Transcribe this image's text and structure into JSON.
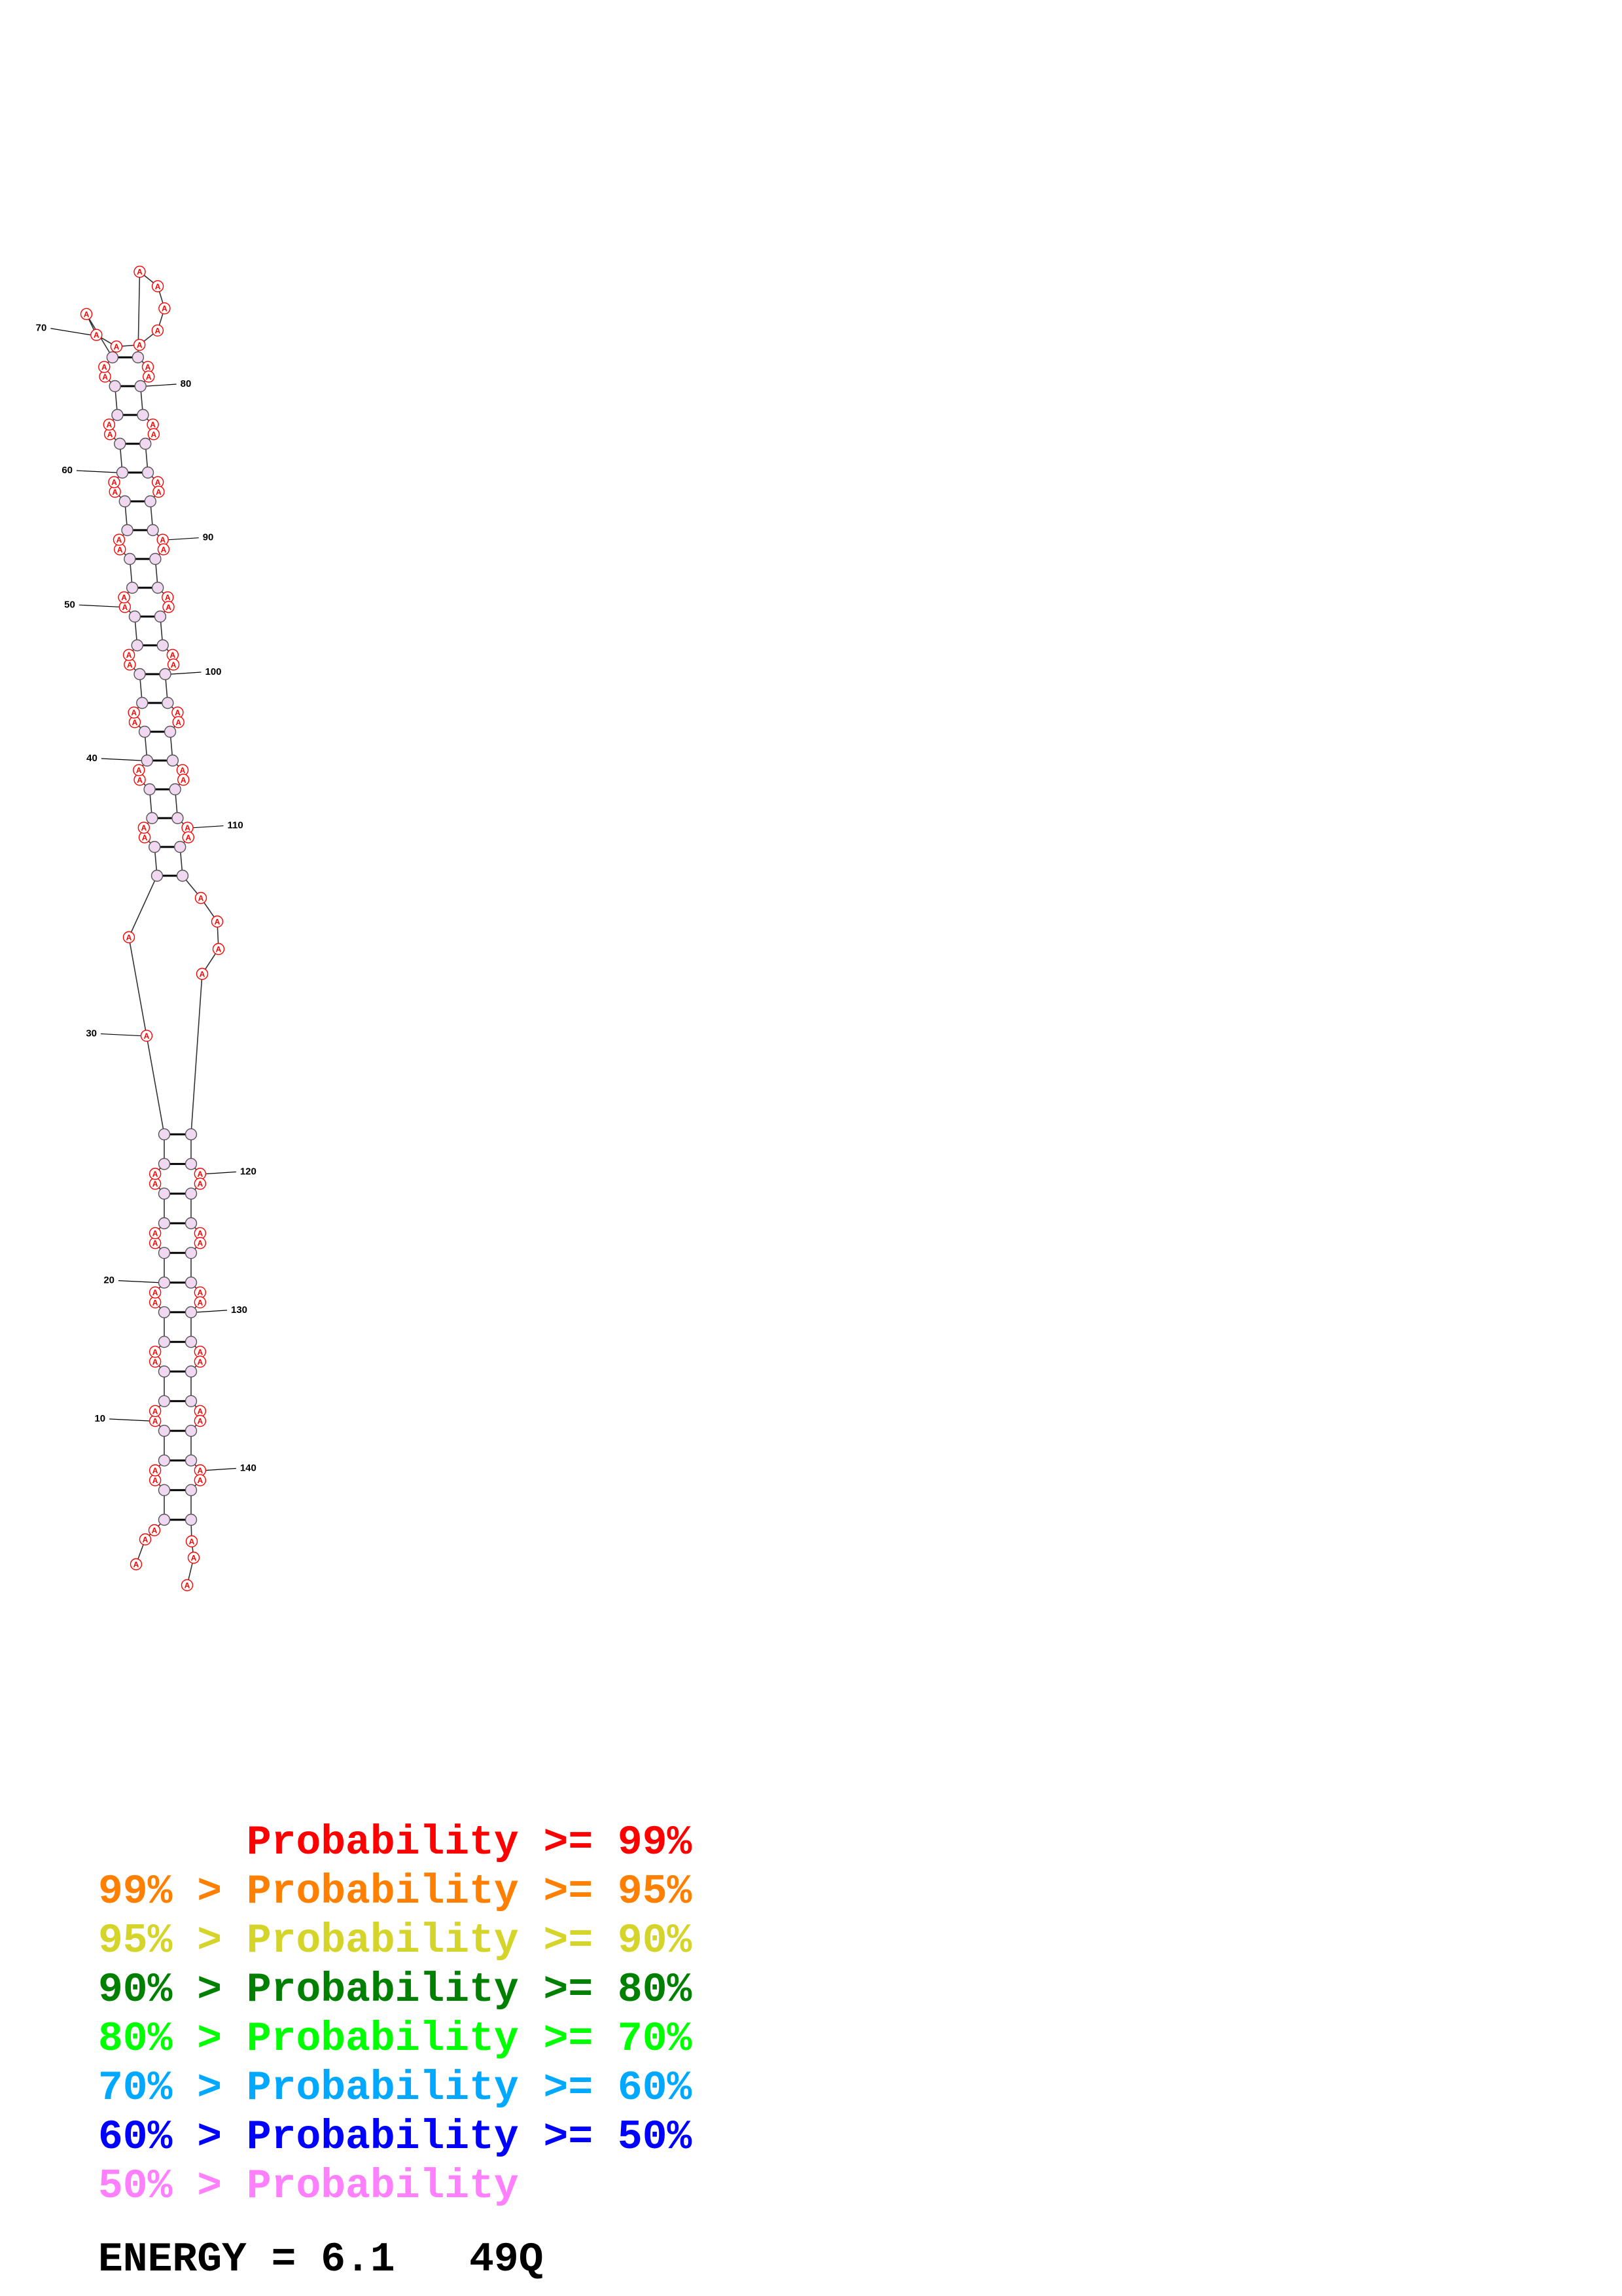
{
  "structure": {
    "position_labels": [
      {
        "text": "10",
        "n": 10
      },
      {
        "text": "20",
        "n": 20
      },
      {
        "text": "30",
        "n": 30
      },
      {
        "text": "40",
        "n": 40
      },
      {
        "text": "50",
        "n": 50
      },
      {
        "text": "60",
        "n": 60
      },
      {
        "text": "70",
        "n": 70
      },
      {
        "text": "80",
        "n": 80
      },
      {
        "text": "90",
        "n": 90
      },
      {
        "text": "100",
        "n": 100
      },
      {
        "text": "110",
        "n": 110
      },
      {
        "text": "120",
        "n": 120
      },
      {
        "text": "130",
        "n": 130
      },
      {
        "text": "140",
        "n": 140
      }
    ],
    "base_letter": "A",
    "unpaired_base_color": "#ff0000",
    "paired_base_color": "#ff80ff"
  },
  "legend": {
    "lines": [
      {
        "text": "      Probability >= 99%",
        "color": "#ff0000"
      },
      {
        "text": "99% > Probability >= 95%",
        "color": "#ff8000"
      },
      {
        "text": "95% > Probability >= 90%",
        "color": "#d4d42a"
      },
      {
        "text": "90% > Probability >= 80%",
        "color": "#008000"
      },
      {
        "text": "80% > Probability >= 70%",
        "color": "#00ff00"
      },
      {
        "text": "70% > Probability >= 60%",
        "color": "#00a8ff"
      },
      {
        "text": "60% > Probability >= 50%",
        "color": "#0000ff"
      },
      {
        "text": "50% > Probability",
        "color": "#ff80ff"
      }
    ]
  },
  "energy": {
    "text": "ENERGY = 6.1   49Q"
  }
}
